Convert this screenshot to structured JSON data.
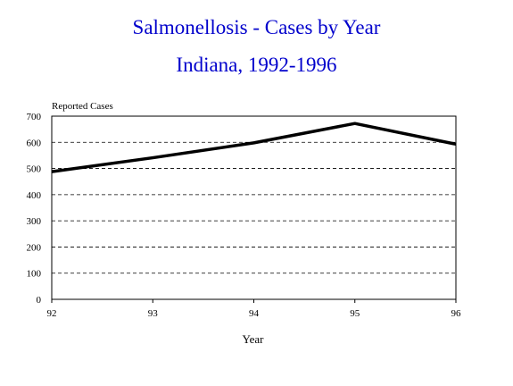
{
  "chart_data": {
    "type": "line",
    "title": "Salmonellosis - Cases by Year",
    "subtitle": "Indiana, 1992-1996",
    "xlabel": "Year",
    "ylabel": "Reported Cases",
    "categories": [
      "92",
      "93",
      "94",
      "95",
      "96"
    ],
    "series": [
      {
        "values": [
          488,
          541,
          598,
          672,
          593
        ]
      }
    ],
    "ylim": [
      0,
      700
    ],
    "yticks": [
      0,
      100,
      200,
      300,
      400,
      500,
      600,
      700
    ],
    "grid": "horizontal dashed",
    "line_color": "#000000",
    "title_color": "#0000cc"
  }
}
